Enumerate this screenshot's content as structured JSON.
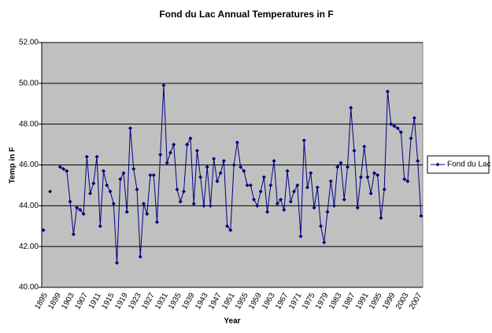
{
  "chart_data": {
    "type": "line",
    "title": "Fond du Lac Annual Temperatures in F",
    "x_label": "Year",
    "y_label": "Temp in F",
    "categories": [
      "1895",
      null,
      null,
      null,
      "1899",
      null,
      null,
      null,
      "1903",
      null,
      null,
      null,
      "1907",
      null,
      null,
      null,
      "1911",
      null,
      null,
      null,
      "1915",
      null,
      null,
      null,
      "1919",
      null,
      null,
      null,
      "1923",
      null,
      null,
      null,
      "1927",
      null,
      null,
      null,
      "1931",
      null,
      null,
      null,
      "1935",
      null,
      null,
      null,
      "1939",
      null,
      null,
      null,
      "1943",
      null,
      null,
      null,
      "1947",
      null,
      null,
      null,
      "1951",
      null,
      null,
      null,
      "1955",
      null,
      null,
      null,
      "1959",
      null,
      null,
      null,
      "1963",
      null,
      null,
      null,
      "1967",
      null,
      null,
      null,
      "1971",
      null,
      null,
      null,
      "1975",
      null,
      null,
      null,
      "1979",
      null,
      null,
      null,
      "1983",
      null,
      null,
      null,
      "1987",
      null,
      null,
      null,
      "1991",
      null,
      null,
      null,
      "1995",
      null,
      null,
      null,
      "1999",
      null,
      null,
      null,
      "2003",
      null,
      null,
      null,
      "2007",
      null
    ],
    "series": [
      {
        "name": "Fond du Lac",
        "color": "#000080",
        "values": [
          42.8,
          null,
          44.7,
          null,
          null,
          45.9,
          45.8,
          45.7,
          44.2,
          42.6,
          43.9,
          43.8,
          43.6,
          46.4,
          44.6,
          45.1,
          46.4,
          43.0,
          45.7,
          45.0,
          44.7,
          44.1,
          41.2,
          45.3,
          45.6,
          43.7,
          47.8,
          45.8,
          44.8,
          41.5,
          44.1,
          43.6,
          45.5,
          45.5,
          43.2,
          46.5,
          49.9,
          46.1,
          46.6,
          47.0,
          44.8,
          44.2,
          44.7,
          47.0,
          47.3,
          44.1,
          46.7,
          45.4,
          44.0,
          45.9,
          44.0,
          46.3,
          45.2,
          45.6,
          46.2,
          43.0,
          42.8,
          46.0,
          47.1,
          45.9,
          45.7,
          45.0,
          45.0,
          44.3,
          44.0,
          44.7,
          45.4,
          43.7,
          45.0,
          46.2,
          44.1,
          44.3,
          43.8,
          45.7,
          44.2,
          44.7,
          45.0,
          42.5,
          47.2,
          44.9,
          45.6,
          43.9,
          44.9,
          43.0,
          42.2,
          43.7,
          45.2,
          44.0,
          45.9,
          46.1,
          44.3,
          45.9,
          48.8,
          46.7,
          43.9,
          45.4,
          46.9,
          45.4,
          44.6,
          45.6,
          45.5,
          43.4,
          44.8,
          49.6,
          48.0,
          47.9,
          47.8,
          47.6,
          45.3,
          45.2,
          47.3,
          48.3,
          46.2,
          43.5
        ]
      }
    ],
    "ylim": [
      40,
      52
    ],
    "yticks": [
      {
        "value": 40,
        "label": "40.00"
      },
      {
        "value": 42,
        "label": "42.00"
      },
      {
        "value": 44,
        "label": "44.00"
      },
      {
        "value": 46,
        "label": "46.00"
      },
      {
        "value": 48,
        "label": "48.00"
      },
      {
        "value": 50,
        "label": "50.00"
      },
      {
        "value": 52,
        "label": "52.00"
      }
    ],
    "grid": true,
    "legend": "right"
  }
}
